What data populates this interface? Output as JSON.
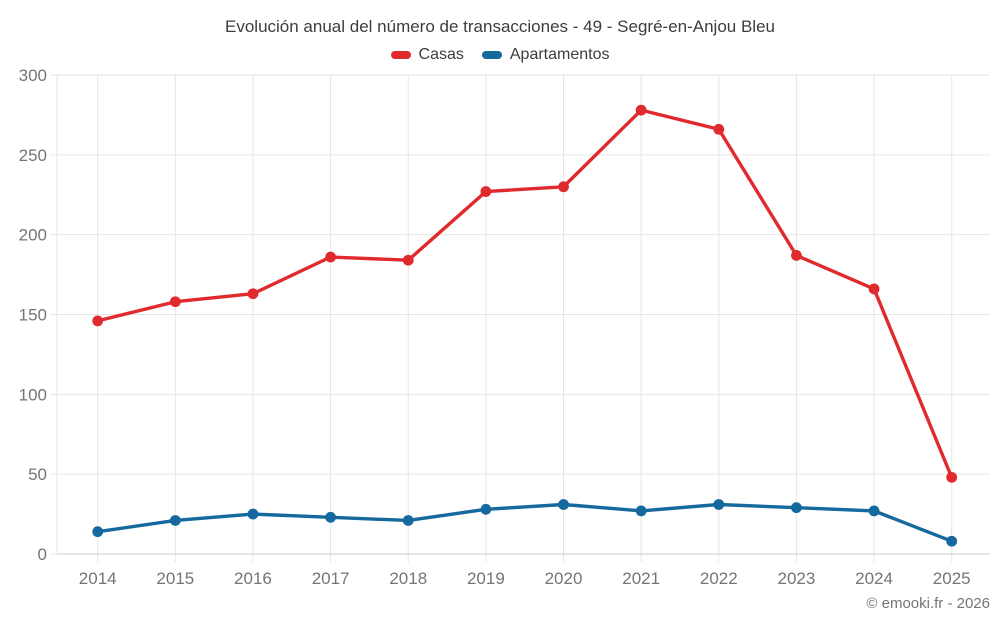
{
  "chart_data": {
    "type": "line",
    "title": "Evolución anual del número de transacciones - 49 - Segré-en-Anjou Bleu",
    "categories": [
      "2014",
      "2015",
      "2016",
      "2017",
      "2018",
      "2019",
      "2020",
      "2021",
      "2022",
      "2023",
      "2024",
      "2025"
    ],
    "series": [
      {
        "name": "Casas",
        "color": "#e12a2e",
        "values": [
          146,
          158,
          163,
          186,
          184,
          227,
          230,
          278,
          266,
          187,
          166,
          48
        ]
      },
      {
        "name": "Apartamentos",
        "color": "#16699e",
        "values": [
          14,
          21,
          25,
          23,
          21,
          28,
          31,
          27,
          31,
          29,
          27,
          8
        ]
      }
    ],
    "xlabel": "",
    "ylabel": "",
    "ylim": [
      0,
      300
    ],
    "yticks": [
      0,
      50,
      100,
      150,
      200,
      250,
      300
    ],
    "grid": true,
    "legend_position": "top-center"
  },
  "footer": {
    "text": "© emooki.fr - 2026"
  },
  "colors": {
    "background": "#ffffff",
    "grid": "#e6e6e6",
    "axis_line": "#cccccc",
    "tick_label": "#757575",
    "title_text": "#3d3d3d"
  }
}
